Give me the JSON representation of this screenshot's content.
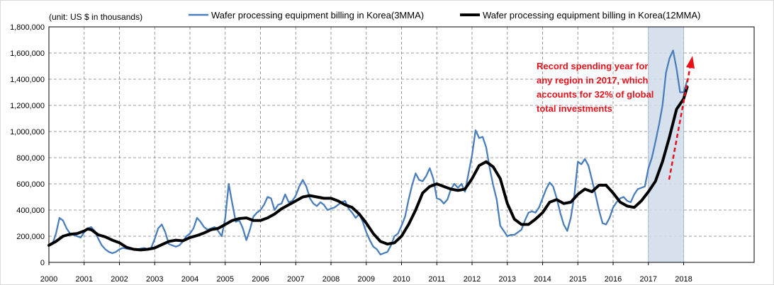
{
  "chart_data": {
    "type": "line",
    "title": "",
    "unit_label": "(unit: US $ in thousands)",
    "xlabel": "",
    "ylabel": "",
    "x_ticks": [
      "2000",
      "2001",
      "2002",
      "2003",
      "2004",
      "2005",
      "2006",
      "2007",
      "2008",
      "2009",
      "2010",
      "2011",
      "2012",
      "2013",
      "2014",
      "2015",
      "2016",
      "2017",
      "2018"
    ],
    "y_ticks": [
      "0",
      "200,000",
      "400,000",
      "600,000",
      "800,000",
      "1,000,000",
      "1,200,000",
      "1,400,000",
      "1,600,000",
      "1,800,000"
    ],
    "xlim": [
      2000,
      2020
    ],
    "ylim": [
      0,
      1800000
    ],
    "grid": true,
    "legend_position": "top",
    "highlight_range": [
      2017,
      2018
    ],
    "annotation": {
      "lines": [
        "Record spending year for",
        "any region in 2017,  which",
        "accounts for 32% of global",
        "total investments"
      ],
      "color": "#e8111a"
    },
    "series": [
      {
        "name": "Wafer processing equipment billing in Korea(3MMA)",
        "color": "#4a7ebb",
        "points": [
          [
            2000.0,
            130000
          ],
          [
            2000.1,
            140000
          ],
          [
            2000.2,
            220000
          ],
          [
            2000.3,
            340000
          ],
          [
            2000.4,
            320000
          ],
          [
            2000.5,
            260000
          ],
          [
            2000.6,
            220000
          ],
          [
            2000.7,
            210000
          ],
          [
            2000.8,
            200000
          ],
          [
            2000.9,
            190000
          ],
          [
            2001.0,
            230000
          ],
          [
            2001.1,
            260000
          ],
          [
            2001.2,
            270000
          ],
          [
            2001.3,
            240000
          ],
          [
            2001.4,
            180000
          ],
          [
            2001.5,
            130000
          ],
          [
            2001.6,
            100000
          ],
          [
            2001.7,
            80000
          ],
          [
            2001.8,
            70000
          ],
          [
            2001.9,
            80000
          ],
          [
            2002.0,
            100000
          ],
          [
            2002.1,
            110000
          ],
          [
            2002.3,
            100000
          ],
          [
            2002.5,
            100000
          ],
          [
            2002.7,
            110000
          ],
          [
            2002.8,
            100000
          ],
          [
            2002.9,
            110000
          ],
          [
            2003.0,
            180000
          ],
          [
            2003.1,
            260000
          ],
          [
            2003.2,
            290000
          ],
          [
            2003.3,
            230000
          ],
          [
            2003.4,
            140000
          ],
          [
            2003.5,
            130000
          ],
          [
            2003.6,
            120000
          ],
          [
            2003.7,
            130000
          ],
          [
            2003.8,
            160000
          ],
          [
            2003.9,
            200000
          ],
          [
            2004.0,
            220000
          ],
          [
            2004.1,
            260000
          ],
          [
            2004.2,
            340000
          ],
          [
            2004.3,
            310000
          ],
          [
            2004.4,
            270000
          ],
          [
            2004.5,
            250000
          ],
          [
            2004.6,
            260000
          ],
          [
            2004.7,
            270000
          ],
          [
            2004.8,
            240000
          ],
          [
            2004.9,
            200000
          ],
          [
            2005.0,
            340000
          ],
          [
            2005.1,
            600000
          ],
          [
            2005.2,
            450000
          ],
          [
            2005.3,
            310000
          ],
          [
            2005.4,
            320000
          ],
          [
            2005.5,
            260000
          ],
          [
            2005.6,
            170000
          ],
          [
            2005.7,
            250000
          ],
          [
            2005.8,
            350000
          ],
          [
            2005.9,
            380000
          ],
          [
            2006.0,
            400000
          ],
          [
            2006.1,
            440000
          ],
          [
            2006.2,
            500000
          ],
          [
            2006.3,
            490000
          ],
          [
            2006.4,
            400000
          ],
          [
            2006.5,
            440000
          ],
          [
            2006.6,
            450000
          ],
          [
            2006.7,
            520000
          ],
          [
            2006.8,
            460000
          ],
          [
            2006.9,
            470000
          ],
          [
            2007.0,
            510000
          ],
          [
            2007.1,
            580000
          ],
          [
            2007.2,
            630000
          ],
          [
            2007.3,
            580000
          ],
          [
            2007.4,
            490000
          ],
          [
            2007.5,
            450000
          ],
          [
            2007.6,
            430000
          ],
          [
            2007.7,
            460000
          ],
          [
            2007.8,
            440000
          ],
          [
            2007.9,
            400000
          ],
          [
            2008.0,
            410000
          ],
          [
            2008.1,
            420000
          ],
          [
            2008.2,
            440000
          ],
          [
            2008.3,
            460000
          ],
          [
            2008.4,
            470000
          ],
          [
            2008.5,
            410000
          ],
          [
            2008.6,
            380000
          ],
          [
            2008.7,
            340000
          ],
          [
            2008.8,
            370000
          ],
          [
            2008.9,
            310000
          ],
          [
            2009.0,
            230000
          ],
          [
            2009.1,
            170000
          ],
          [
            2009.2,
            120000
          ],
          [
            2009.3,
            100000
          ],
          [
            2009.4,
            60000
          ],
          [
            2009.5,
            70000
          ],
          [
            2009.6,
            80000
          ],
          [
            2009.7,
            130000
          ],
          [
            2009.8,
            200000
          ],
          [
            2009.9,
            220000
          ],
          [
            2010.0,
            280000
          ],
          [
            2010.1,
            350000
          ],
          [
            2010.2,
            480000
          ],
          [
            2010.3,
            590000
          ],
          [
            2010.4,
            680000
          ],
          [
            2010.5,
            630000
          ],
          [
            2010.6,
            620000
          ],
          [
            2010.7,
            660000
          ],
          [
            2010.8,
            720000
          ],
          [
            2010.9,
            640000
          ],
          [
            2011.0,
            490000
          ],
          [
            2011.1,
            480000
          ],
          [
            2011.2,
            450000
          ],
          [
            2011.3,
            480000
          ],
          [
            2011.4,
            560000
          ],
          [
            2011.5,
            600000
          ],
          [
            2011.6,
            570000
          ],
          [
            2011.7,
            600000
          ],
          [
            2011.8,
            540000
          ],
          [
            2011.9,
            680000
          ],
          [
            2012.0,
            820000
          ],
          [
            2012.1,
            1010000
          ],
          [
            2012.2,
            950000
          ],
          [
            2012.3,
            960000
          ],
          [
            2012.4,
            880000
          ],
          [
            2012.5,
            720000
          ],
          [
            2012.6,
            590000
          ],
          [
            2012.7,
            480000
          ],
          [
            2012.8,
            280000
          ],
          [
            2012.9,
            240000
          ],
          [
            2013.0,
            200000
          ],
          [
            2013.1,
            210000
          ],
          [
            2013.2,
            210000
          ],
          [
            2013.3,
            230000
          ],
          [
            2013.4,
            250000
          ],
          [
            2013.5,
            320000
          ],
          [
            2013.6,
            380000
          ],
          [
            2013.7,
            390000
          ],
          [
            2013.8,
            380000
          ],
          [
            2013.9,
            420000
          ],
          [
            2014.0,
            490000
          ],
          [
            2014.1,
            560000
          ],
          [
            2014.2,
            610000
          ],
          [
            2014.3,
            580000
          ],
          [
            2014.4,
            490000
          ],
          [
            2014.5,
            380000
          ],
          [
            2014.6,
            290000
          ],
          [
            2014.7,
            240000
          ],
          [
            2014.8,
            340000
          ],
          [
            2014.9,
            510000
          ],
          [
            2015.0,
            770000
          ],
          [
            2015.1,
            750000
          ],
          [
            2015.2,
            790000
          ],
          [
            2015.3,
            740000
          ],
          [
            2015.4,
            630000
          ],
          [
            2015.5,
            520000
          ],
          [
            2015.6,
            400000
          ],
          [
            2015.7,
            300000
          ],
          [
            2015.8,
            290000
          ],
          [
            2015.9,
            340000
          ],
          [
            2016.0,
            420000
          ],
          [
            2016.1,
            460000
          ],
          [
            2016.2,
            490000
          ],
          [
            2016.3,
            500000
          ],
          [
            2016.4,
            470000
          ],
          [
            2016.5,
            460000
          ],
          [
            2016.6,
            520000
          ],
          [
            2016.7,
            560000
          ],
          [
            2016.8,
            570000
          ],
          [
            2016.9,
            580000
          ],
          [
            2017.0,
            720000
          ],
          [
            2017.1,
            800000
          ],
          [
            2017.2,
            920000
          ],
          [
            2017.3,
            1050000
          ],
          [
            2017.4,
            1200000
          ],
          [
            2017.5,
            1450000
          ],
          [
            2017.6,
            1560000
          ],
          [
            2017.7,
            1620000
          ],
          [
            2017.8,
            1480000
          ],
          [
            2017.9,
            1300000
          ],
          [
            2018.0,
            1300000
          ],
          [
            2018.1,
            1390000
          ]
        ]
      },
      {
        "name": "Wafer processing equipment billing in Korea(12MMA)",
        "color": "#000000",
        "points": [
          [
            2000.0,
            130000
          ],
          [
            2000.2,
            160000
          ],
          [
            2000.4,
            200000
          ],
          [
            2000.6,
            215000
          ],
          [
            2000.8,
            220000
          ],
          [
            2001.0,
            240000
          ],
          [
            2001.1,
            255000
          ],
          [
            2001.2,
            250000
          ],
          [
            2001.4,
            210000
          ],
          [
            2001.6,
            195000
          ],
          [
            2001.8,
            170000
          ],
          [
            2002.0,
            150000
          ],
          [
            2002.2,
            115000
          ],
          [
            2002.4,
            100000
          ],
          [
            2002.6,
            95000
          ],
          [
            2002.8,
            100000
          ],
          [
            2003.0,
            110000
          ],
          [
            2003.2,
            135000
          ],
          [
            2003.4,
            160000
          ],
          [
            2003.6,
            170000
          ],
          [
            2003.8,
            165000
          ],
          [
            2004.0,
            190000
          ],
          [
            2004.2,
            205000
          ],
          [
            2004.4,
            225000
          ],
          [
            2004.6,
            250000
          ],
          [
            2004.8,
            260000
          ],
          [
            2005.0,
            290000
          ],
          [
            2005.2,
            320000
          ],
          [
            2005.4,
            335000
          ],
          [
            2005.6,
            340000
          ],
          [
            2005.8,
            320000
          ],
          [
            2006.0,
            320000
          ],
          [
            2006.2,
            340000
          ],
          [
            2006.4,
            370000
          ],
          [
            2006.6,
            410000
          ],
          [
            2006.8,
            440000
          ],
          [
            2007.0,
            470000
          ],
          [
            2007.2,
            500000
          ],
          [
            2007.4,
            510000
          ],
          [
            2007.6,
            500000
          ],
          [
            2007.8,
            490000
          ],
          [
            2008.0,
            490000
          ],
          [
            2008.2,
            470000
          ],
          [
            2008.4,
            440000
          ],
          [
            2008.6,
            420000
          ],
          [
            2008.8,
            370000
          ],
          [
            2009.0,
            300000
          ],
          [
            2009.2,
            220000
          ],
          [
            2009.4,
            160000
          ],
          [
            2009.6,
            140000
          ],
          [
            2009.8,
            150000
          ],
          [
            2010.0,
            200000
          ],
          [
            2010.2,
            290000
          ],
          [
            2010.4,
            400000
          ],
          [
            2010.6,
            530000
          ],
          [
            2010.8,
            580000
          ],
          [
            2011.0,
            600000
          ],
          [
            2011.2,
            580000
          ],
          [
            2011.4,
            560000
          ],
          [
            2011.6,
            550000
          ],
          [
            2011.8,
            560000
          ],
          [
            2012.0,
            640000
          ],
          [
            2012.2,
            740000
          ],
          [
            2012.4,
            770000
          ],
          [
            2012.6,
            730000
          ],
          [
            2012.8,
            640000
          ],
          [
            2013.0,
            450000
          ],
          [
            2013.2,
            330000
          ],
          [
            2013.4,
            290000
          ],
          [
            2013.6,
            290000
          ],
          [
            2013.8,
            330000
          ],
          [
            2014.0,
            380000
          ],
          [
            2014.2,
            460000
          ],
          [
            2014.4,
            480000
          ],
          [
            2014.6,
            450000
          ],
          [
            2014.8,
            460000
          ],
          [
            2015.0,
            520000
          ],
          [
            2015.2,
            560000
          ],
          [
            2015.4,
            540000
          ],
          [
            2015.6,
            590000
          ],
          [
            2015.8,
            590000
          ],
          [
            2016.0,
            530000
          ],
          [
            2016.2,
            460000
          ],
          [
            2016.4,
            430000
          ],
          [
            2016.6,
            420000
          ],
          [
            2016.8,
            470000
          ],
          [
            2017.0,
            540000
          ],
          [
            2017.2,
            620000
          ],
          [
            2017.4,
            770000
          ],
          [
            2017.6,
            960000
          ],
          [
            2017.8,
            1170000
          ],
          [
            2018.0,
            1250000
          ],
          [
            2018.1,
            1340000
          ]
        ]
      }
    ]
  }
}
